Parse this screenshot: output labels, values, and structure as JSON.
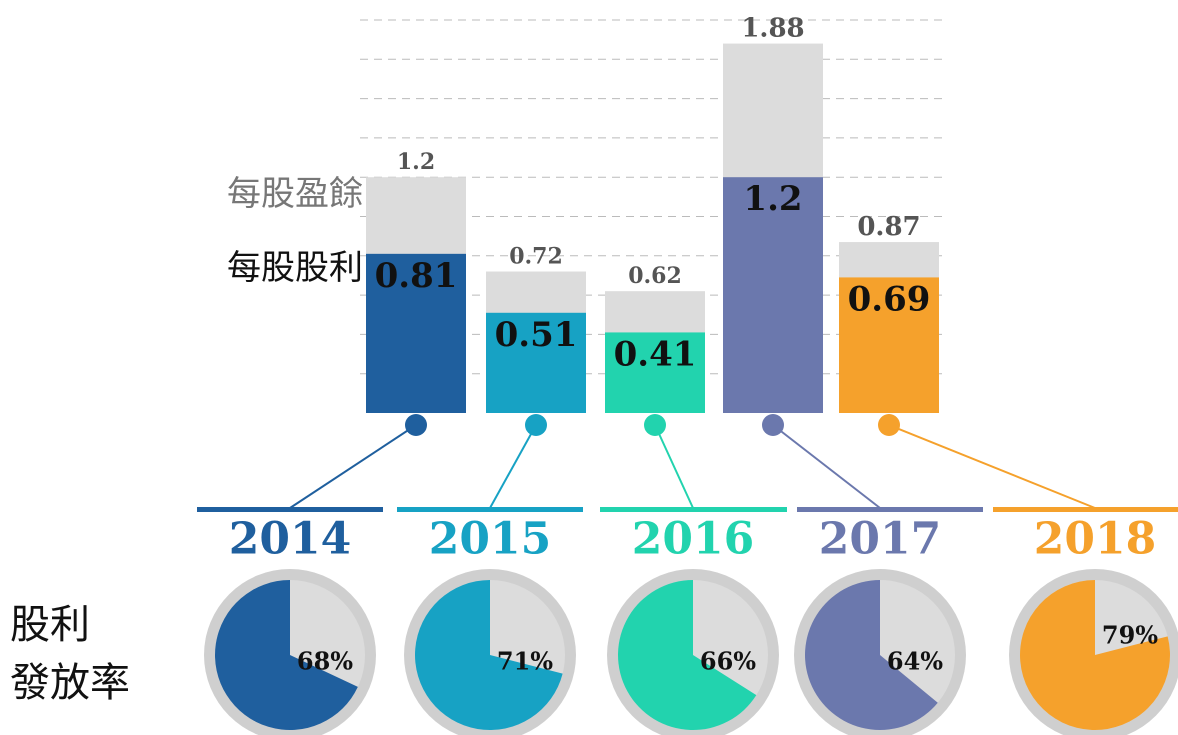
{
  "chart_data": [
    {
      "type": "bar",
      "categories": [
        "2014",
        "2015",
        "2016",
        "2017",
        "2018"
      ],
      "colors": [
        "#1f5f9e",
        "#17a2c4",
        "#22d3ae",
        "#6b78ad",
        "#f5a12c"
      ],
      "series": [
        {
          "name": "每股盈餘",
          "color": "#dcdcdc",
          "values": [
            1.2,
            0.72,
            0.62,
            1.88,
            0.87
          ]
        },
        {
          "name": "每股股利",
          "values": [
            0.81,
            0.51,
            0.41,
            1.2,
            0.69
          ]
        }
      ],
      "ylim": [
        0,
        2.0
      ],
      "yticks": [
        0.2,
        0.4,
        0.6,
        0.8,
        1.0,
        1.2,
        1.4,
        1.6,
        1.8,
        2.0
      ],
      "grid": true
    },
    {
      "type": "pie",
      "title_lines": [
        "股利",
        "發放率"
      ],
      "categories": [
        "2014",
        "2015",
        "2016",
        "2017",
        "2018"
      ],
      "colors": [
        "#1f5f9e",
        "#17a2c4",
        "#22d3ae",
        "#6b78ad",
        "#f5a12c"
      ],
      "values": [
        68,
        71,
        66,
        64,
        79
      ],
      "value_labels": [
        "68%",
        "71%",
        "66%",
        "64%",
        "79%"
      ]
    }
  ]
}
